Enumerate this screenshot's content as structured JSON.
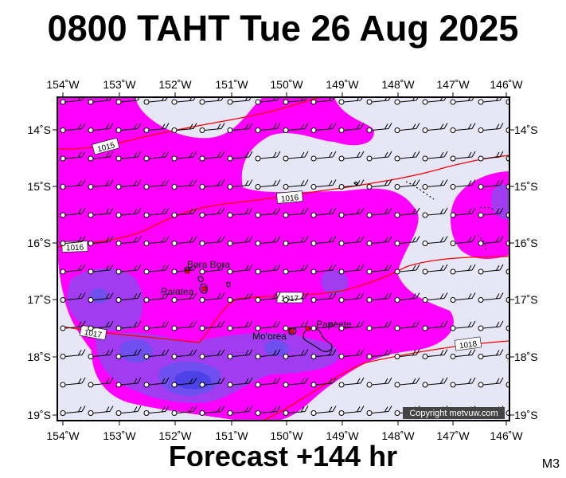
{
  "title": "0800 TAHT Tue 26 Aug 2025",
  "footer": "Forecast +144 hr",
  "model_code": "M3",
  "copyright": "Copyright metvuw.com",
  "colors": {
    "background": "#e6e6f7",
    "rain_light": "#ff00ff",
    "rain_medium": "#a23cf0",
    "rain_heavy": "#6f4ff0",
    "rain_very_heavy": "#4b42e8",
    "isobar": "#ff0000"
  },
  "map": {
    "lon_labels": [
      "154˚W",
      "153˚W",
      "152˚W",
      "151˚W",
      "150˚W",
      "149˚W",
      "148˚W",
      "147˚W",
      "146˚W"
    ],
    "lat_labels": [
      "14˚S",
      "15˚S",
      "16˚S",
      "17˚S",
      "18˚S",
      "19˚S"
    ],
    "isobars": [
      "1015",
      "1016",
      "1016",
      "1017",
      "1017",
      "1018"
    ],
    "places": [
      "Bora Bora",
      "Raiatea",
      "Mo'orea",
      "Papeete"
    ]
  }
}
